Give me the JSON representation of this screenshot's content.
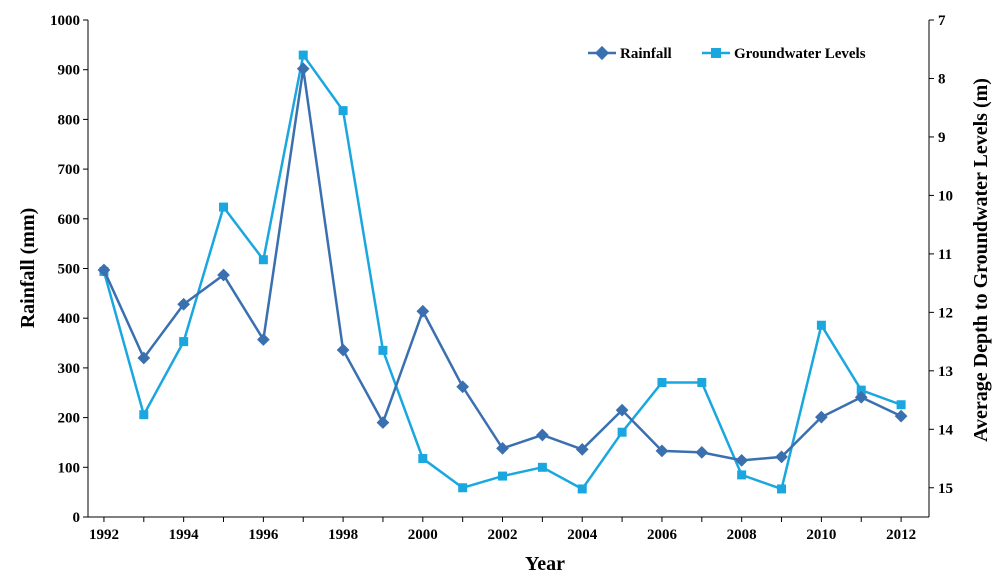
{
  "chart_data": {
    "type": "line",
    "x": [
      1992,
      1993,
      1994,
      1995,
      1996,
      1997,
      1998,
      1999,
      2000,
      2001,
      2002,
      2003,
      2004,
      2005,
      2006,
      2007,
      2008,
      2009,
      2010,
      2011,
      2012
    ],
    "x_tick_labels": [
      "1992",
      "1994",
      "1996",
      "1998",
      "2000",
      "2002",
      "2004",
      "2006",
      "2008",
      "2010",
      "2012"
    ],
    "xlim": [
      1991.6,
      2012.7
    ],
    "xlabel": "Year",
    "ylabel_left": "Rainfall  (mm)",
    "ylim_left": [
      0,
      1000
    ],
    "yticks_left": [
      "0",
      "100",
      "200",
      "300",
      "400",
      "500",
      "600",
      "700",
      "800",
      "900",
      "1000"
    ],
    "ylabel_right": "Average Depth to Groundwater Levels (m)",
    "ylim_right": [
      7,
      15.5
    ],
    "right_axis_inverted": true,
    "yticks_right": [
      "7",
      "8",
      "9",
      "10",
      "11",
      "12",
      "13",
      "14",
      "15"
    ],
    "legend_position": "top-right",
    "grid": false,
    "series": [
      {
        "name": "Rainfall",
        "axis": "left",
        "color": "#3a6fb0",
        "marker": "diamond",
        "values": [
          497,
          320,
          428,
          487,
          357,
          902,
          336,
          190,
          414,
          262,
          138,
          165,
          136,
          215,
          133,
          130,
          114,
          121,
          201,
          241,
          203
        ]
      },
      {
        "name": "Groundwater Levels",
        "axis": "right",
        "color": "#1aa7e0",
        "marker": "square",
        "values": [
          11.3,
          13.75,
          12.5,
          10.2,
          11.1,
          7.6,
          8.55,
          12.65,
          14.5,
          15.0,
          14.8,
          14.65,
          15.02,
          14.05,
          13.2,
          13.2,
          14.78,
          15.02,
          12.22,
          13.33,
          13.58
        ]
      }
    ]
  }
}
